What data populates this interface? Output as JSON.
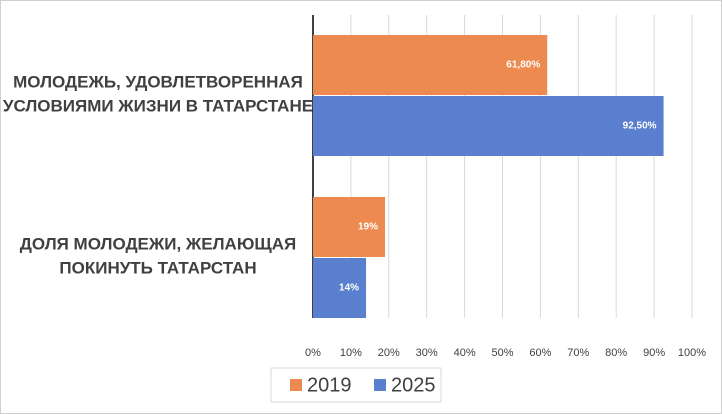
{
  "chart_data": {
    "type": "barh",
    "categories": [
      "МОЛОДЕЖЬ, УДОВЛЕТВОРЕННАЯ\nУСЛОВИЯМИ ЖИЗНИ В ТАТАРСТАНЕ",
      "ДОЛЯ МОЛОДЕЖИ, ЖЕЛАЮЩАЯ\nПОКИНУТЬ ТАТАРСТАН"
    ],
    "series": [
      {
        "name": "2019",
        "color": "#ed8a4f",
        "values": [
          61.8,
          19
        ],
        "value_labels": [
          "61,80%",
          "19%"
        ]
      },
      {
        "name": "2025",
        "color": "#5a7fcf",
        "values": [
          92.5,
          14
        ],
        "value_labels": [
          "92,50%",
          "14%"
        ]
      }
    ],
    "xlim": [
      0,
      100
    ],
    "xticks": [
      {
        "value": 0,
        "label": "0%"
      },
      {
        "value": 10,
        "label": "10%"
      },
      {
        "value": 20,
        "label": "20%"
      },
      {
        "value": 30,
        "label": "30%"
      },
      {
        "value": 40,
        "label": "40%"
      },
      {
        "value": 50,
        "label": "50%"
      },
      {
        "value": 60,
        "label": "60%"
      },
      {
        "value": 70,
        "label": "70%"
      },
      {
        "value": 80,
        "label": "80%"
      },
      {
        "value": 90,
        "label": "90%"
      },
      {
        "value": 100,
        "label": "100%"
      }
    ],
    "grid": true,
    "legend": "bottom"
  }
}
